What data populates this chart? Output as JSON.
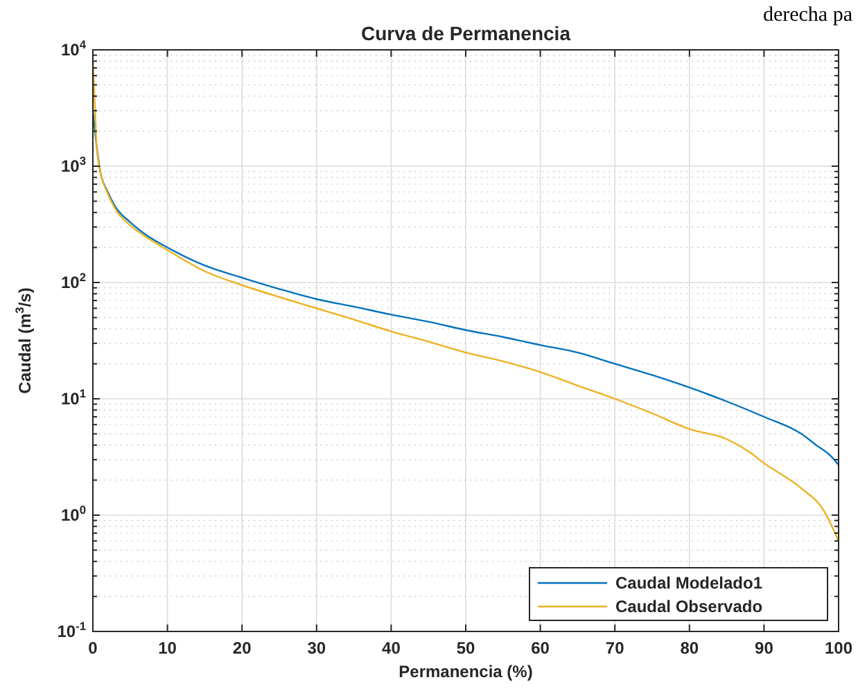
{
  "chart_data": {
    "type": "line",
    "title": "Curva de Permanencia",
    "xlabel": "Permanencia (%)",
    "ylabel": "Caudal (m$^{3}$/s)",
    "annotations": [
      "derecha pa"
    ],
    "log": "y",
    "grid": true,
    "legend": "bottom right",
    "line_style": "solid",
    "marker": "none",
    "xlim": [
      0,
      100
    ],
    "xticks": [
      0,
      10,
      20,
      30,
      40,
      50,
      60,
      70,
      80,
      90,
      100
    ],
    "ylim": [
      0.1,
      10000
    ],
    "yticks": [
      {
        "value": 0.1,
        "label": "10$^{-1}$"
      },
      {
        "value": 1,
        "label": "10$^{0}$"
      },
      {
        "value": 10,
        "label": "10$^{1}$"
      },
      {
        "value": 100,
        "label": "10$^{2}$"
      },
      {
        "value": 1000,
        "label": "10$^{3}$"
      },
      {
        "value": 10000,
        "label": "10$^{4}$"
      }
    ],
    "series": [
      {
        "name": "Caudal Modelado1",
        "color": "#0072bd",
        "x": [
          0,
          0.5,
          1,
          2,
          3,
          5,
          7,
          10,
          15,
          20,
          25,
          30,
          35,
          40,
          45,
          50,
          55,
          60,
          65,
          70,
          75,
          80,
          85,
          90,
          95,
          97,
          99,
          100
        ],
        "values": [
          3000,
          1500,
          900,
          600,
          450,
          330,
          260,
          200,
          140,
          110,
          88,
          72,
          62,
          53,
          46,
          39,
          34,
          29,
          25,
          20,
          16,
          12.5,
          9.5,
          7,
          5,
          4,
          3.2,
          2.7
        ]
      },
      {
        "name": "Caudal Observado",
        "color": "#edb120",
        "x": [
          0,
          0.3,
          0.5,
          1,
          2,
          3,
          5,
          7,
          10,
          15,
          20,
          25,
          30,
          35,
          40,
          45,
          50,
          55,
          60,
          65,
          70,
          75,
          80,
          85,
          88,
          90,
          95,
          98,
          100
        ],
        "values": [
          8000,
          3000,
          1500,
          900,
          580,
          430,
          310,
          250,
          190,
          125,
          95,
          75,
          60,
          48,
          38,
          31,
          25,
          21,
          17,
          13,
          10,
          7.5,
          5.5,
          4.5,
          3.5,
          2.8,
          1.7,
          1.1,
          0.6
        ]
      }
    ]
  }
}
